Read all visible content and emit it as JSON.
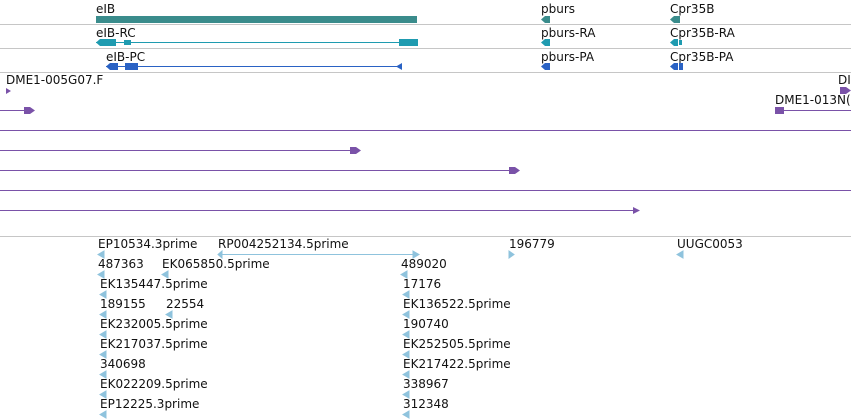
{
  "colors": {
    "gene": "#3a8c8c",
    "transcript_rc": "#1f9bb0",
    "transcript_pc": "#2a62c4",
    "clone": "#7a52a8",
    "est": "#8fc3dd",
    "separator": "#bdbdbd"
  },
  "genes": [
    {
      "label": "eIB"
    },
    {
      "label": "pburs"
    },
    {
      "label": "Cpr35B"
    }
  ],
  "transcripts_rc": [
    {
      "label": "eIB-RC"
    },
    {
      "label": "pburs-RA"
    },
    {
      "label": "Cpr35B-RA"
    }
  ],
  "transcripts_pc": [
    {
      "label": "eIB-PC"
    },
    {
      "label": "pburs-PA"
    },
    {
      "label": "Cpr35B-PA"
    }
  ],
  "clones": [
    {
      "label": "DME1-005G07.F"
    },
    {
      "label": "DI"
    },
    {
      "label": "DME1-013N("
    }
  ],
  "ests": [
    {
      "label": "EP10534.3prime"
    },
    {
      "label": "RP004252134.5prime"
    },
    {
      "label": "196779"
    },
    {
      "label": "UUGC0053"
    },
    {
      "label": "487363"
    },
    {
      "label": "EK065850.5prime"
    },
    {
      "label": "489020"
    },
    {
      "label": "EK135447.5prime"
    },
    {
      "label": "17176"
    },
    {
      "label": "189155"
    },
    {
      "label": "22554"
    },
    {
      "label": "EK136522.5prime"
    },
    {
      "label": "EK232005.5prime"
    },
    {
      "label": "190740"
    },
    {
      "label": "EK217037.5prime"
    },
    {
      "label": "EK252505.5prime"
    },
    {
      "label": "340698"
    },
    {
      "label": "EK217422.5prime"
    },
    {
      "label": "EK022209.5prime"
    },
    {
      "label": "338967"
    },
    {
      "label": "EP12225.3prime"
    },
    {
      "label": "312348"
    }
  ]
}
